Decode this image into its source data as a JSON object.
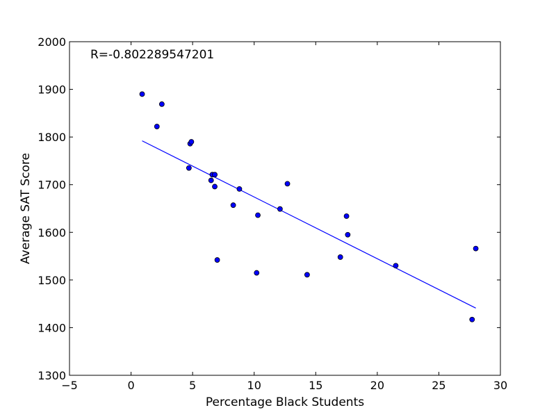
{
  "chart_data": {
    "type": "scatter",
    "title": "",
    "xlabel": "Percentage Black Students",
    "ylabel": "Average SAT Score",
    "xlim": [
      -5,
      30
    ],
    "ylim": [
      1300,
      2000
    ],
    "xticks": [
      -5,
      0,
      5,
      10,
      15,
      20,
      25,
      30
    ],
    "yticks": [
      1300,
      1400,
      1500,
      1600,
      1700,
      1800,
      1900,
      2000
    ],
    "xtick_labels": [
      "−5",
      "0",
      "5",
      "10",
      "15",
      "20",
      "25",
      "30"
    ],
    "ytick_labels": [
      "1300",
      "1400",
      "1500",
      "1600",
      "1700",
      "1800",
      "1900",
      "2000"
    ],
    "grid": false,
    "annotation": "R=-0.802289547201",
    "point_color": "#0000ff",
    "line_color": "#0000ff",
    "points": [
      {
        "x": 0.9,
        "y": 1890
      },
      {
        "x": 2.5,
        "y": 1869
      },
      {
        "x": 2.1,
        "y": 1822
      },
      {
        "x": 4.8,
        "y": 1786
      },
      {
        "x": 4.9,
        "y": 1790
      },
      {
        "x": 4.7,
        "y": 1735
      },
      {
        "x": 6.6,
        "y": 1721
      },
      {
        "x": 6.8,
        "y": 1721
      },
      {
        "x": 6.5,
        "y": 1709
      },
      {
        "x": 6.8,
        "y": 1696
      },
      {
        "x": 8.8,
        "y": 1691
      },
      {
        "x": 12.7,
        "y": 1702
      },
      {
        "x": 8.3,
        "y": 1657
      },
      {
        "x": 12.1,
        "y": 1649
      },
      {
        "x": 10.3,
        "y": 1636
      },
      {
        "x": 17.5,
        "y": 1634
      },
      {
        "x": 17.6,
        "y": 1595
      },
      {
        "x": 7.0,
        "y": 1542
      },
      {
        "x": 17.0,
        "y": 1548
      },
      {
        "x": 21.5,
        "y": 1530
      },
      {
        "x": 28.0,
        "y": 1566
      },
      {
        "x": 10.2,
        "y": 1515
      },
      {
        "x": 14.3,
        "y": 1511
      },
      {
        "x": 27.7,
        "y": 1417
      }
    ],
    "fit_line": {
      "x": [
        0.9,
        28.0
      ],
      "y": [
        1792,
        1441
      ]
    }
  }
}
